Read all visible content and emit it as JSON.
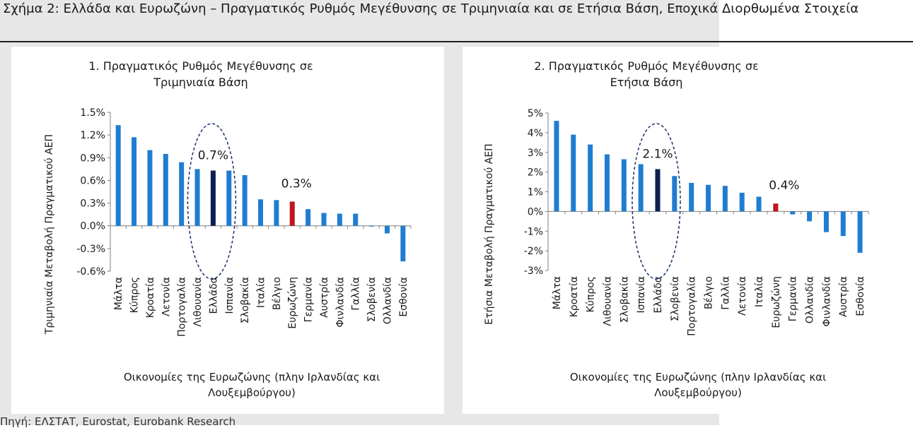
{
  "figure_title": "Σχήμα 2: Ελλάδα και Ευρωζώνη – Πραγματικός Ρυθμός Μεγέθυνσης σε Τριμηνιαία και σε Ετήσια Βάση, Εποχικά Διορθωμένα Στοιχεία",
  "source": "Πηγή: ΕΛΣΤΑΤ, Eurostat, Eurobank Research",
  "colors": {
    "bar": "#1f7dd1",
    "greece": "#0d1f4f",
    "eurozone": "#c0141d",
    "ellipse": "#16306b",
    "axis": "#7f7f7f"
  },
  "chart_data": [
    {
      "type": "bar",
      "title_line1": "1. Πραγματικός Ρυθμός Μεγέθυνσης σε",
      "title_line2": "Τριμηνιαία Βάση",
      "ylabel": "Τριμηνιαία Μεταβολή Πραγματικού ΑΕΠ",
      "xlabel_line1": "Οικονομίες της Ευρωζώνης (πλην Ιρλανδίας και",
      "xlabel_line2": "Λουξεμβούργου)",
      "ylim": [
        -0.6,
        1.5
      ],
      "yticks": [
        1.5,
        1.2,
        0.9,
        0.6,
        0.3,
        0.0,
        -0.3,
        -0.6
      ],
      "ytick_labels": [
        "1.5%",
        "1.2%",
        "0.9%",
        "0.6%",
        "0.3%",
        "0.0%",
        "-0.3%",
        "-0.6%"
      ],
      "categories": [
        "Μάλτα",
        "Κύπρος",
        "Κροατία",
        "Λετονία",
        "Πορτογαλία",
        "Λιθουανία",
        "Ελλάδα",
        "Ισπανία",
        "Σλοβακία",
        "Ιταλία",
        "Βέλγιο",
        "Ευρωζώνη",
        "Γερμανία",
        "Αυστρία",
        "Φινλανδία",
        "Γαλλία",
        "Σλοβενία",
        "Ολλανδία",
        "Εσθονία"
      ],
      "values": [
        1.33,
        1.17,
        1.0,
        0.95,
        0.84,
        0.75,
        0.73,
        0.73,
        0.67,
        0.35,
        0.34,
        0.32,
        0.22,
        0.17,
        0.16,
        0.16,
        -0.01,
        -0.1,
        -0.47
      ],
      "highlight_greece": "Ελλάδα",
      "highlight_eurozone": "Ευρωζώνη",
      "greece_label": "0.7%",
      "eurozone_label": "0.3%"
    },
    {
      "type": "bar",
      "title_line1": "2. Πραγματικός Ρυθμός Μεγέθυνσης σε",
      "title_line2": "Ετήσια Βάση",
      "ylabel": "Ετήσια Μεταβολή Πραγματικού ΑΕΠ",
      "xlabel_line1": "Οικονομίες της Ευρωζώνης (πλην Ιρλανδίας και",
      "xlabel_line2": "Λουξεμβούργου)",
      "ylim": [
        -3,
        5
      ],
      "yticks": [
        5,
        4,
        3,
        2,
        1,
        0,
        -1,
        -2,
        -3
      ],
      "ytick_labels": [
        "5%",
        "4%",
        "3%",
        "2%",
        "1%",
        "0%",
        "-1%",
        "-2%",
        "-3%"
      ],
      "categories": [
        "Μάλτα",
        "Κροατία",
        "Κύπρος",
        "Λιθουανία",
        "Σλοβακία",
        "Ισπανία",
        "Ελλάδα",
        "Σλοβενία",
        "Πορτογαλία",
        "Βέλγιο",
        "Γαλλία",
        "Λετονία",
        "Ιταλία",
        "Ευρωζώνη",
        "Γερμανία",
        "Ολλανδία",
        "Φινλανδία",
        "Αυστρία",
        "Εσθονία"
      ],
      "values": [
        4.6,
        3.9,
        3.4,
        2.9,
        2.65,
        2.4,
        2.15,
        1.8,
        1.45,
        1.35,
        1.3,
        0.95,
        0.75,
        0.4,
        -0.15,
        -0.5,
        -1.05,
        -1.25,
        -2.1
      ],
      "highlight_greece": "Ελλάδα",
      "highlight_eurozone": "Ευρωζώνη",
      "greece_label": "2.1%",
      "eurozone_label": "0.4%"
    }
  ]
}
